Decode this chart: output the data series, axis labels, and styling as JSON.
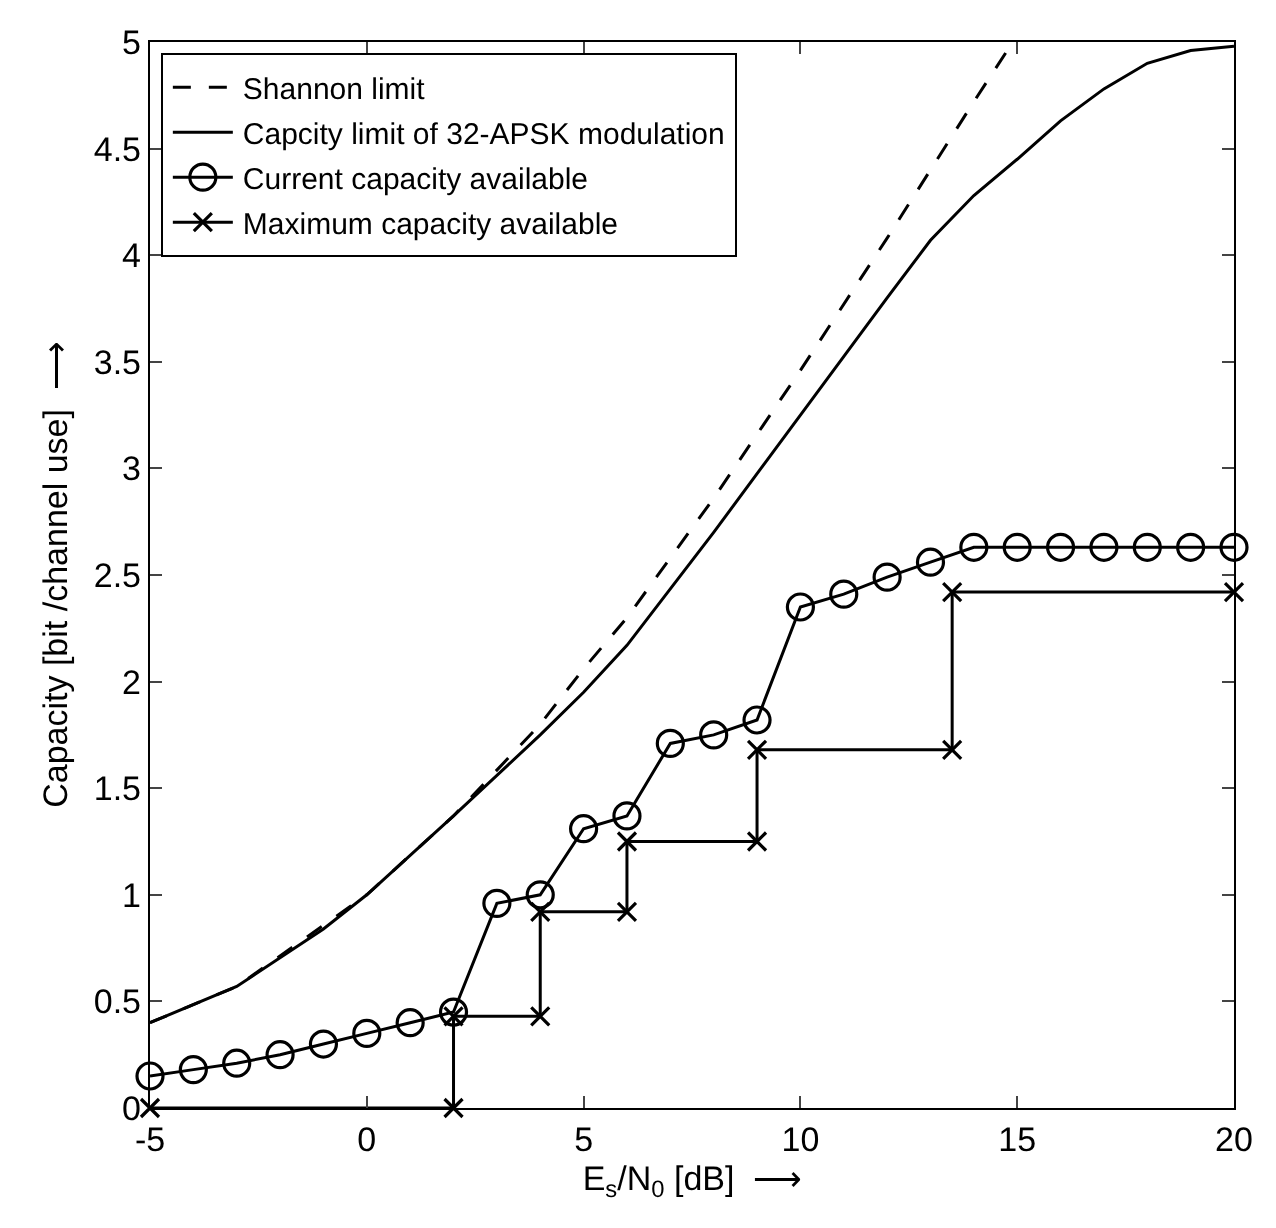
{
  "chart_data": {
    "type": "line",
    "xlabel": "E$_{s}$/N$_{0}$ [dB]  ⟶",
    "ylabel": "Capacity [bit /channel use]  ⟶",
    "xlim": [
      -5,
      20
    ],
    "xticks": [
      -5,
      0,
      5,
      10,
      15,
      20
    ],
    "ylim": [
      0,
      5
    ],
    "yticks": [
      0,
      0.5,
      1,
      1.5,
      2,
      2.5,
      3,
      3.5,
      4,
      4.5,
      5
    ],
    "legend": "top left",
    "series": [
      {
        "name": "Shannon limit",
        "color": "#000000",
        "line_style": "dashed",
        "marker": "none",
        "x": [
          -5,
          -3,
          0,
          2,
          4,
          5,
          6,
          8,
          10,
          12,
          14,
          14.9
        ],
        "values": [
          0.4,
          0.57,
          1.0,
          1.37,
          1.8,
          2.06,
          2.3,
          2.86,
          3.46,
          4.08,
          4.72,
          5.0
        ]
      },
      {
        "name": "Capcity limit of 32-APSK modulation",
        "color": "#000000",
        "line_style": "solid",
        "marker": "none",
        "x": [
          -5,
          -3,
          -1,
          0,
          2,
          4,
          5,
          6,
          8,
          10,
          12,
          13,
          14,
          15,
          16,
          17,
          18,
          19,
          20
        ],
        "values": [
          0.4,
          0.57,
          0.84,
          1.0,
          1.37,
          1.75,
          1.95,
          2.17,
          2.7,
          3.25,
          3.8,
          4.07,
          4.28,
          4.45,
          4.63,
          4.78,
          4.9,
          4.96,
          4.98
        ]
      },
      {
        "name": "Current capacity available",
        "color": "#000000",
        "line_style": "solid",
        "marker": "circle",
        "x": [
          -5,
          -4,
          -3,
          -2,
          -1,
          0,
          1,
          2,
          3,
          4,
          5,
          6,
          7,
          8,
          9,
          10,
          11,
          12,
          13,
          14,
          15,
          16,
          17,
          18,
          19,
          20
        ],
        "values": [
          0.15,
          0.18,
          0.21,
          0.25,
          0.3,
          0.35,
          0.4,
          0.45,
          0.96,
          1.0,
          1.31,
          1.37,
          1.71,
          1.75,
          1.82,
          2.35,
          2.41,
          2.49,
          2.56,
          2.63,
          2.63,
          2.63,
          2.63,
          2.63,
          2.63,
          2.63
        ]
      },
      {
        "name": "Maximum capacity available",
        "color": "#000000",
        "line_style": "solid",
        "marker": "cross",
        "x": [
          -5,
          2,
          2,
          4,
          4,
          6,
          6,
          9,
          9,
          13.5,
          13.5,
          20
        ],
        "values": [
          0,
          0,
          0.43,
          0.43,
          0.92,
          0.92,
          1.25,
          1.25,
          1.68,
          1.68,
          2.42,
          2.42
        ]
      }
    ]
  }
}
